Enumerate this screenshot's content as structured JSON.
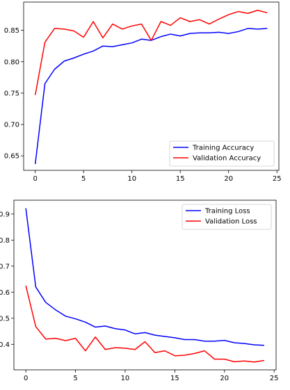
{
  "chart_data": [
    {
      "type": "line",
      "title": "",
      "xlabel": "",
      "ylabel": "",
      "xlim": [
        -1.2,
        25.2
      ],
      "ylim": [
        0.627,
        0.895
      ],
      "xticks": [
        0,
        5,
        10,
        15,
        20,
        25
      ],
      "yticks": [
        0.65,
        0.7,
        0.75,
        0.8,
        0.85
      ],
      "ytick_labels": [
        "0.65",
        "0.70",
        "0.75",
        "0.80",
        "0.85"
      ],
      "legend_position": "lower-right",
      "x": [
        0,
        1,
        2,
        3,
        4,
        5,
        6,
        7,
        8,
        9,
        10,
        11,
        12,
        13,
        14,
        15,
        16,
        17,
        18,
        19,
        20,
        21,
        22,
        23,
        24
      ],
      "series": [
        {
          "name": "Training Accuracy",
          "color": "#0000ff",
          "values": [
            0.637,
            0.765,
            0.788,
            0.801,
            0.806,
            0.812,
            0.817,
            0.825,
            0.824,
            0.827,
            0.83,
            0.836,
            0.834,
            0.84,
            0.844,
            0.841,
            0.845,
            0.846,
            0.846,
            0.847,
            0.845,
            0.848,
            0.853,
            0.852,
            0.853
          ]
        },
        {
          "name": "Validation Accuracy",
          "color": "#ff0000",
          "values": [
            0.747,
            0.831,
            0.853,
            0.852,
            0.849,
            0.839,
            0.864,
            0.838,
            0.86,
            0.852,
            0.857,
            0.86,
            0.834,
            0.864,
            0.858,
            0.87,
            0.864,
            0.867,
            0.86,
            0.868,
            0.875,
            0.88,
            0.877,
            0.882,
            0.878
          ]
        }
      ]
    },
    {
      "type": "line",
      "title": "",
      "xlabel": "",
      "ylabel": "",
      "xlim": [
        -1.2,
        25.2
      ],
      "ylim": [
        0.302,
        0.953
      ],
      "xticks": [
        0,
        5,
        10,
        15,
        20,
        25
      ],
      "yticks": [
        0.4,
        0.5,
        0.6,
        0.7,
        0.8,
        0.9
      ],
      "ytick_labels": [
        "0.4",
        "0.5",
        "0.6",
        "0.7",
        "0.8",
        "0.9"
      ],
      "legend_position": "upper-right",
      "x": [
        0,
        1,
        2,
        3,
        4,
        5,
        6,
        7,
        8,
        9,
        10,
        11,
        12,
        13,
        14,
        15,
        16,
        17,
        18,
        19,
        20,
        21,
        22,
        23,
        24
      ],
      "series": [
        {
          "name": "Training Loss",
          "color": "#0000ff",
          "values": [
            0.922,
            0.62,
            0.561,
            0.532,
            0.508,
            0.498,
            0.485,
            0.466,
            0.47,
            0.46,
            0.455,
            0.44,
            0.445,
            0.435,
            0.43,
            0.425,
            0.418,
            0.418,
            0.412,
            0.412,
            0.415,
            0.406,
            0.403,
            0.398,
            0.396
          ]
        },
        {
          "name": "Validation Loss",
          "color": "#ff0000",
          "values": [
            0.625,
            0.468,
            0.42,
            0.423,
            0.414,
            0.423,
            0.375,
            0.428,
            0.38,
            0.387,
            0.385,
            0.38,
            0.41,
            0.368,
            0.375,
            0.356,
            0.358,
            0.365,
            0.375,
            0.343,
            0.343,
            0.333,
            0.336,
            0.332,
            0.338
          ]
        }
      ]
    }
  ]
}
